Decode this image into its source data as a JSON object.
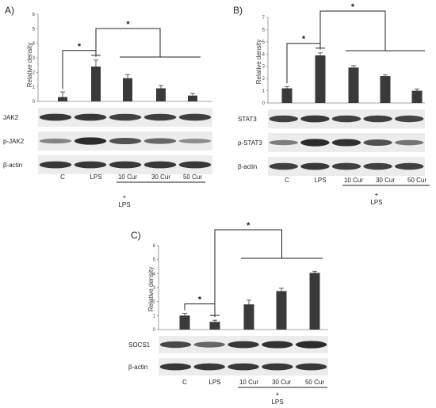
{
  "figure": {
    "panels": [
      {
        "panel_label": "A)",
        "blot_labels": [
          "JAK2",
          "p-JAK2",
          "β-actin"
        ],
        "treatment_label": "LPS",
        "treatment_sign": "+"
      },
      {
        "panel_label": "B)",
        "blot_labels": [
          "STAT3",
          "p-STAT3",
          "β-actin"
        ],
        "treatment_label": "LPS",
        "treatment_sign": "+"
      },
      {
        "panel_label": "C)",
        "blot_labels": [
          "SOCS1",
          "β-actin"
        ],
        "treatment_label": "LPS",
        "treatment_sign": "+"
      }
    ],
    "significance_marker": "*",
    "colors": {
      "bar": "#3a3a3a",
      "blot_background": "#ececec",
      "band": "#222222"
    }
  },
  "chart_data": [
    {
      "type": "bar",
      "categories": [
        "C",
        "LPS",
        "10 Cur",
        "30 Cur",
        "50 Cur"
      ],
      "values": [
        0.3,
        2.4,
        1.6,
        0.9,
        0.4
      ],
      "errors": [
        0.35,
        0.45,
        0.25,
        0.2,
        0.15
      ],
      "ylabel": "Relative density",
      "ylim": [
        0,
        6
      ],
      "yticks": [
        "0",
        "1",
        "2",
        "3",
        "4",
        "5",
        "6"
      ],
      "annotations": [
        "*",
        "*"
      ],
      "band_intensity": {
        "JAK2": [
          0.85,
          0.85,
          0.8,
          0.8,
          0.82
        ],
        "p-JAK2": [
          0.35,
          0.95,
          0.7,
          0.55,
          0.3
        ],
        "β-actin": [
          0.85,
          0.85,
          0.85,
          0.85,
          0.85
        ]
      }
    },
    {
      "type": "bar",
      "categories": [
        "C",
        "LPS",
        "10 Cur",
        "30 Cur",
        "50 Cur"
      ],
      "values": [
        1.2,
        3.9,
        2.9,
        2.2,
        1.0
      ],
      "errors": [
        0.15,
        0.2,
        0.15,
        0.1,
        0.15
      ],
      "ylabel": "Relative density",
      "ylim": [
        0,
        7
      ],
      "yticks": [
        "0",
        "1",
        "2",
        "3",
        "4",
        "5",
        "6",
        "7"
      ],
      "annotations": [
        "*",
        "*"
      ],
      "band_intensity": {
        "STAT3": [
          0.8,
          0.85,
          0.8,
          0.8,
          0.78
        ],
        "p-STAT3": [
          0.4,
          0.95,
          0.9,
          0.7,
          0.45
        ],
        "β-actin": [
          0.8,
          0.85,
          0.82,
          0.8,
          0.8
        ]
      }
    },
    {
      "type": "bar",
      "categories": [
        "C",
        "LPS",
        "10 Cur",
        "30 Cur",
        "50 Cur"
      ],
      "values": [
        1.0,
        0.55,
        1.8,
        2.75,
        4.05
      ],
      "errors": [
        0.15,
        0.12,
        0.3,
        0.2,
        0.12
      ],
      "ylabel": "Relative density",
      "ylim": [
        0,
        6
      ],
      "yticks": [
        "0",
        "1",
        "2",
        "3",
        "4",
        "5",
        "6"
      ],
      "annotations": [
        "*",
        "*"
      ],
      "band_intensity": {
        "SOCS1": [
          0.75,
          0.55,
          0.85,
          0.9,
          0.95
        ],
        "β-actin": [
          0.85,
          0.85,
          0.85,
          0.85,
          0.85
        ]
      }
    }
  ]
}
